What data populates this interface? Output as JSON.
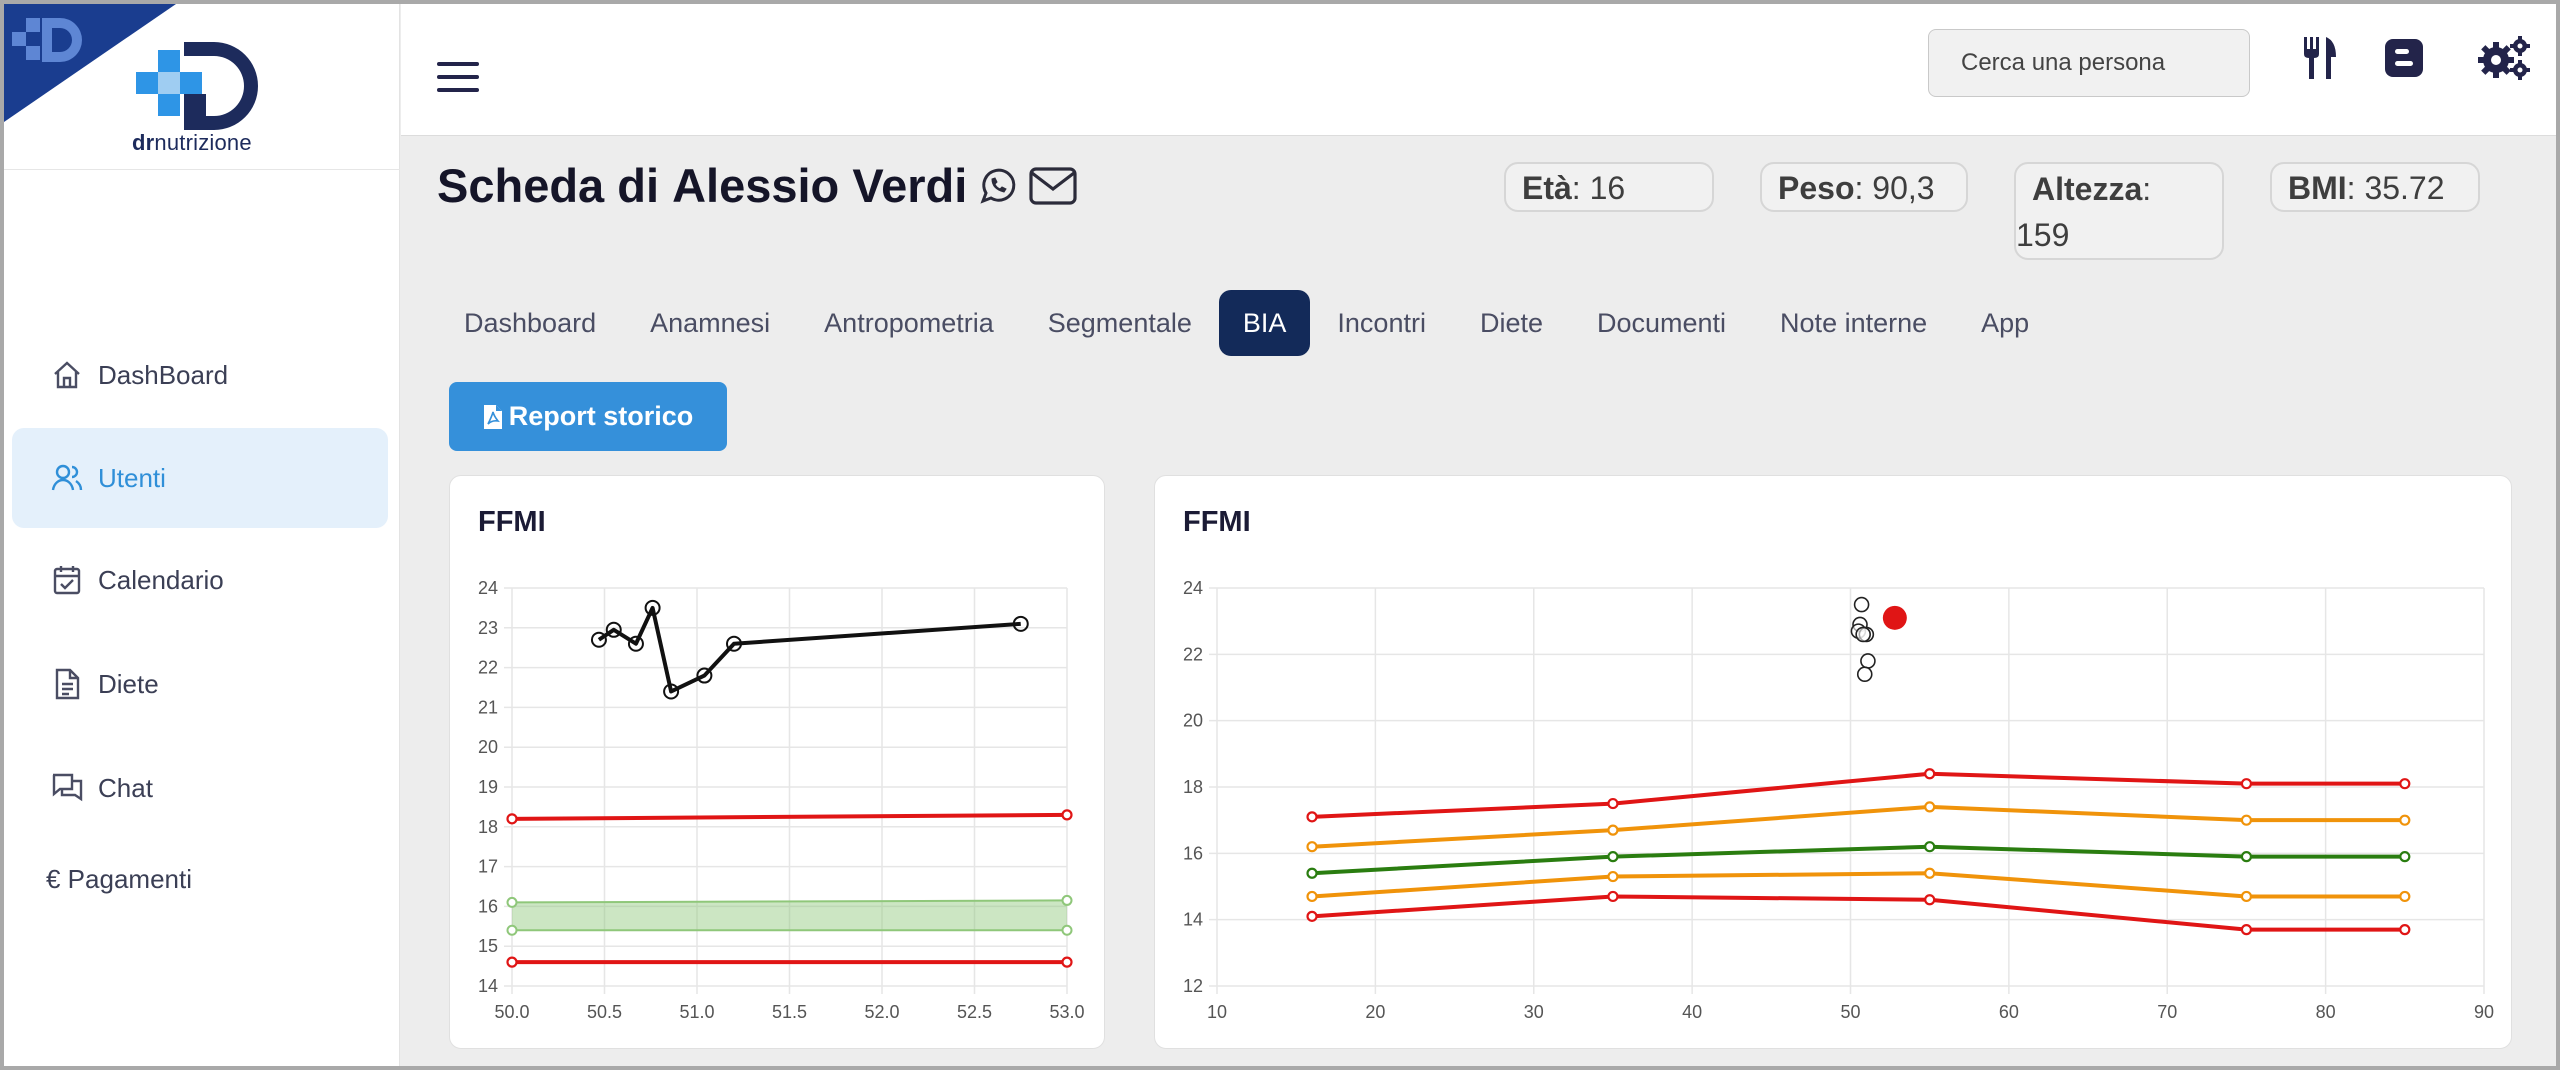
{
  "brand": {
    "logo_text_bold": "dr",
    "logo_text": "nutrizione"
  },
  "sidebar": {
    "items": [
      {
        "label": "DashBoard",
        "icon": "home-icon",
        "active": false
      },
      {
        "label": "Utenti",
        "icon": "users-icon",
        "active": true
      },
      {
        "label": "Calendario",
        "icon": "calendar-check-icon",
        "active": false
      },
      {
        "label": "Diete",
        "icon": "document-icon",
        "active": false
      },
      {
        "label": "Chat",
        "icon": "chat-icon",
        "active": false
      },
      {
        "label": "€ Pagamenti",
        "icon": "",
        "active": false
      }
    ]
  },
  "topbar": {
    "search_placeholder": "Cerca una persona",
    "icons": [
      "cutlery-icon",
      "blogger-icon",
      "settings-gears-icon"
    ]
  },
  "header": {
    "title_prefix": "Scheda di ",
    "title_name": "Alessio Verdi",
    "icons": [
      "whatsapp-icon",
      "envelope-icon"
    ],
    "stats": {
      "age_label": "Età",
      "age_value": ": 16",
      "weight_label": "Peso",
      "weight_value": ": 90,3",
      "height_label": "Altezza",
      "height_value": ":",
      "height_value_line2": "159",
      "bmi_label": "BMI",
      "bmi_value": ": 35.72"
    }
  },
  "tabs": [
    {
      "label": "Dashboard",
      "active": false
    },
    {
      "label": "Anamnesi",
      "active": false
    },
    {
      "label": "Antropometria",
      "active": false
    },
    {
      "label": "Segmentale",
      "active": false
    },
    {
      "label": "BIA",
      "active": true
    },
    {
      "label": "Incontri",
      "active": false
    },
    {
      "label": "Diete",
      "active": false
    },
    {
      "label": "Documenti",
      "active": false
    },
    {
      "label": "Note interne",
      "active": false
    },
    {
      "label": "App",
      "active": false
    }
  ],
  "report_button": {
    "label": "Report storico",
    "icon": "file-pdf-icon"
  },
  "colors": {
    "red": "#e01515",
    "orange": "#f0930a",
    "green": "#2a7d10",
    "band": "#8fc77a",
    "active_tab": "#132a59",
    "button": "#3590da"
  },
  "chart_data": [
    {
      "type": "line",
      "title": "FFMI",
      "xlim": [
        50.0,
        53.0
      ],
      "ylim": [
        14,
        24
      ],
      "x_ticks": [
        "50.0",
        "50.5",
        "51.0",
        "51.5",
        "52.0",
        "52.5",
        "53.0"
      ],
      "y_ticks": [
        "14",
        "15",
        "16",
        "17",
        "18",
        "19",
        "20",
        "21",
        "22",
        "23",
        "24"
      ],
      "grid": true,
      "series": [
        {
          "color": "#111111",
          "points": [
            [
              50.47,
              22.7
            ],
            [
              50.55,
              22.95
            ],
            [
              50.67,
              22.6
            ],
            [
              50.76,
              23.5
            ],
            [
              50.86,
              21.4
            ],
            [
              51.04,
              21.8
            ],
            [
              51.2,
              22.6
            ],
            [
              52.75,
              23.1
            ]
          ]
        },
        {
          "color": "#e01515",
          "points": [
            [
              50.0,
              18.2
            ],
            [
              53.0,
              18.3
            ]
          ]
        },
        {
          "color": "#e01515",
          "points": [
            [
              50.0,
              14.6
            ],
            [
              53.0,
              14.6
            ]
          ]
        },
        {
          "color": "#8fc77a",
          "band": true,
          "upper": [
            [
              50.0,
              16.1
            ],
            [
              53.0,
              16.15
            ]
          ],
          "lower": [
            [
              50.0,
              15.4
            ],
            [
              53.0,
              15.4
            ]
          ]
        }
      ]
    },
    {
      "type": "line",
      "title": "FFMI",
      "xlim": [
        10,
        90
      ],
      "ylim": [
        12,
        24
      ],
      "x_ticks": [
        "10",
        "20",
        "30",
        "40",
        "50",
        "60",
        "70",
        "80",
        "90"
      ],
      "y_ticks": [
        "12",
        "14",
        "16",
        "18",
        "20",
        "22",
        "24"
      ],
      "grid": true,
      "series": [
        {
          "color": "#e01515",
          "points": [
            [
              16,
              17.1
            ],
            [
              35,
              17.5
            ],
            [
              55,
              18.4
            ],
            [
              75,
              18.1
            ],
            [
              85,
              18.1
            ]
          ]
        },
        {
          "color": "#f0930a",
          "points": [
            [
              16,
              16.2
            ],
            [
              35,
              16.7
            ],
            [
              55,
              17.4
            ],
            [
              75,
              17.0
            ],
            [
              85,
              17.0
            ]
          ]
        },
        {
          "color": "#2a7d10",
          "points": [
            [
              16,
              15.4
            ],
            [
              35,
              15.9
            ],
            [
              55,
              16.2
            ],
            [
              75,
              15.9
            ],
            [
              85,
              15.9
            ]
          ]
        },
        {
          "color": "#f0930a",
          "points": [
            [
              16,
              14.7
            ],
            [
              35,
              15.3
            ],
            [
              55,
              15.4
            ],
            [
              75,
              14.7
            ],
            [
              85,
              14.7
            ]
          ]
        },
        {
          "color": "#e01515",
          "points": [
            [
              16,
              14.1
            ],
            [
              35,
              14.7
            ],
            [
              55,
              14.6
            ],
            [
              75,
              13.7
            ],
            [
              85,
              13.7
            ]
          ]
        }
      ],
      "scatter": [
        [
          50.7,
          23.5
        ],
        [
          50.6,
          22.9
        ],
        [
          50.5,
          22.7
        ],
        [
          51.0,
          22.6
        ],
        [
          50.8,
          22.6
        ],
        [
          51.1,
          21.8
        ],
        [
          50.9,
          21.4
        ]
      ],
      "highlight": {
        "x": 52.8,
        "y": 23.1,
        "color": "#e01515"
      }
    }
  ]
}
